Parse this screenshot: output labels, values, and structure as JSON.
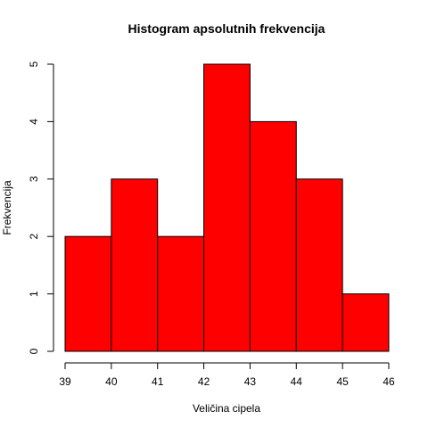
{
  "chart_data": {
    "type": "bar",
    "title": "Histogram apsolutnih frekvencija",
    "xlabel": "Veličina cipela",
    "ylabel": "Frekvencija",
    "bins": [
      {
        "start": 39,
        "end": 40,
        "value": 2
      },
      {
        "start": 40,
        "end": 41,
        "value": 3
      },
      {
        "start": 41,
        "end": 42,
        "value": 2
      },
      {
        "start": 42,
        "end": 43,
        "value": 5
      },
      {
        "start": 43,
        "end": 44,
        "value": 4
      },
      {
        "start": 44,
        "end": 45,
        "value": 3
      },
      {
        "start": 45,
        "end": 46,
        "value": 1
      }
    ],
    "xlim": [
      39,
      46
    ],
    "ylim": [
      0,
      5
    ],
    "xticks": [
      39,
      40,
      41,
      42,
      43,
      44,
      45,
      46
    ],
    "yticks": [
      0,
      1,
      2,
      3,
      4,
      5
    ],
    "bar_color": "#ff0000",
    "grid": false,
    "legend": "none"
  }
}
